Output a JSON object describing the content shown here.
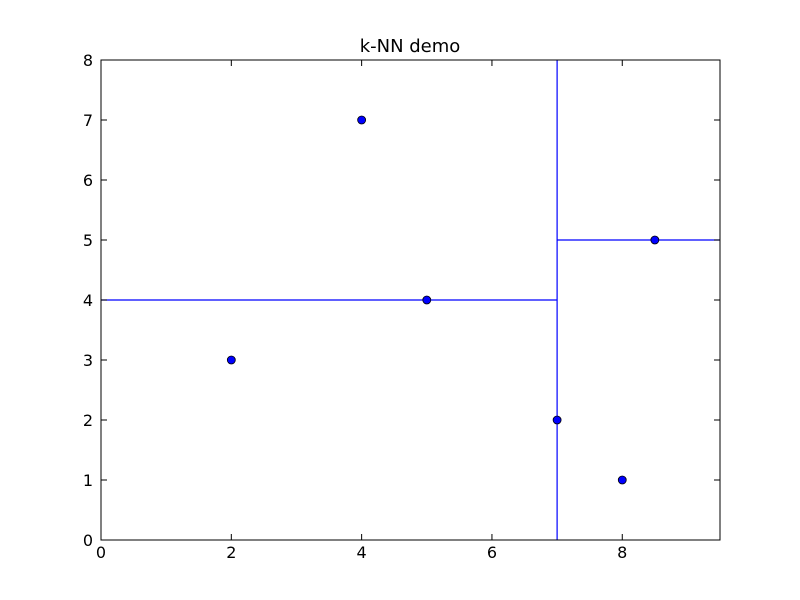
{
  "chart_data": {
    "type": "scatter",
    "title": "k-NN demo",
    "xlabel": "",
    "ylabel": "",
    "xlim": [
      0,
      9.5
    ],
    "ylim": [
      0,
      8
    ],
    "x_ticks": [
      0,
      2,
      4,
      6,
      8
    ],
    "y_ticks": [
      0,
      1,
      2,
      3,
      4,
      5,
      6,
      7,
      8
    ],
    "grid": false,
    "points": [
      {
        "x": 2,
        "y": 3
      },
      {
        "x": 4,
        "y": 7
      },
      {
        "x": 5,
        "y": 4
      },
      {
        "x": 7,
        "y": 2
      },
      {
        "x": 8,
        "y": 1
      },
      {
        "x": 8.5,
        "y": 5
      }
    ],
    "split_lines": [
      {
        "orientation": "vertical",
        "at": 7,
        "from": 0,
        "to": 8
      },
      {
        "orientation": "horizontal",
        "at": 4,
        "from": 0,
        "to": 7
      },
      {
        "orientation": "horizontal",
        "at": 5,
        "from": 7,
        "to": 9.5
      }
    ],
    "colors": {
      "points": "#0000ff",
      "point_edge": "#000000",
      "lines": "#0000ff",
      "axes": "#000000"
    }
  }
}
